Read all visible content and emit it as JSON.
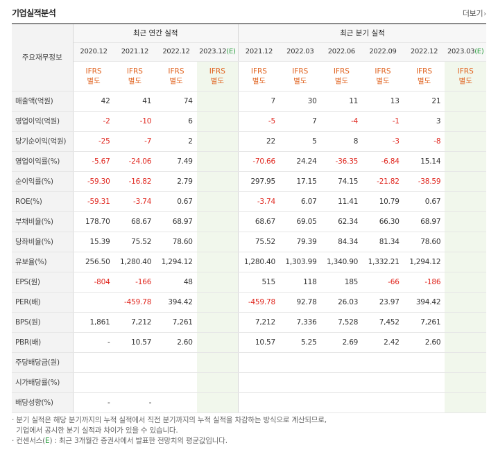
{
  "title": "기업실적분석",
  "more": {
    "label": "더보기",
    "icon": "chevron-right-icon"
  },
  "rowhead_label": "주요재무정보",
  "groups": {
    "annual": "최근 연간 실적",
    "quarterly": "최근 분기 실적"
  },
  "annual": [
    {
      "period": "2020.12",
      "estimate": false,
      "ifrs": [
        "IFRS",
        "별도"
      ]
    },
    {
      "period": "2021.12",
      "estimate": false,
      "ifrs": [
        "IFRS",
        "별도"
      ]
    },
    {
      "period": "2022.12",
      "estimate": false,
      "ifrs": [
        "IFRS",
        "별도"
      ]
    },
    {
      "period": "2023.12",
      "estimate": true,
      "e_mark": "(E)",
      "ifrs": [
        "IFRS",
        "별도"
      ]
    }
  ],
  "quarterly": [
    {
      "period": "2021.12",
      "estimate": false,
      "ifrs": [
        "IFRS",
        "별도"
      ]
    },
    {
      "period": "2022.03",
      "estimate": false,
      "ifrs": [
        "IFRS",
        "별도"
      ]
    },
    {
      "period": "2022.06",
      "estimate": false,
      "ifrs": [
        "IFRS",
        "별도"
      ]
    },
    {
      "period": "2022.09",
      "estimate": false,
      "ifrs": [
        "IFRS",
        "별도"
      ]
    },
    {
      "period": "2022.12",
      "estimate": false,
      "ifrs": [
        "IFRS",
        "별도"
      ]
    },
    {
      "period": "2023.03",
      "estimate": true,
      "e_mark": "(E)",
      "ifrs": [
        "IFRS",
        "별도"
      ]
    }
  ],
  "rows": [
    {
      "label": "매출액(억원)",
      "group_start": false,
      "values": [
        "42",
        "41",
        "74",
        "",
        "7",
        "30",
        "11",
        "13",
        "21",
        ""
      ]
    },
    {
      "label": "영업이익(억원)",
      "group_start": false,
      "values": [
        "-2",
        "-10",
        "6",
        "",
        "-5",
        "7",
        "-4",
        "-1",
        "3",
        ""
      ]
    },
    {
      "label": "당기순이익(억원)",
      "group_start": false,
      "values": [
        "-25",
        "-7",
        "2",
        "",
        "22",
        "5",
        "8",
        "-3",
        "-8",
        ""
      ]
    },
    {
      "label": "영업이익률(%)",
      "group_start": true,
      "values": [
        "-5.67",
        "-24.06",
        "7.49",
        "",
        "-70.66",
        "24.24",
        "-36.35",
        "-6.84",
        "15.14",
        ""
      ]
    },
    {
      "label": "순이익률(%)",
      "group_start": false,
      "values": [
        "-59.30",
        "-16.82",
        "2.79",
        "",
        "297.95",
        "17.15",
        "74.15",
        "-21.82",
        "-38.59",
        ""
      ]
    },
    {
      "label": "ROE(%)",
      "group_start": false,
      "values": [
        "-59.31",
        "-3.74",
        "0.67",
        "",
        "-3.74",
        "6.07",
        "11.41",
        "10.79",
        "0.67",
        ""
      ]
    },
    {
      "label": "부채비율(%)",
      "group_start": true,
      "values": [
        "178.70",
        "68.67",
        "68.97",
        "",
        "68.67",
        "69.05",
        "62.34",
        "66.30",
        "68.97",
        ""
      ]
    },
    {
      "label": "당좌비율(%)",
      "group_start": false,
      "values": [
        "15.39",
        "75.52",
        "78.60",
        "",
        "75.52",
        "79.39",
        "84.34",
        "81.34",
        "78.60",
        ""
      ]
    },
    {
      "label": "유보율(%)",
      "group_start": false,
      "values": [
        "256.50",
        "1,280.40",
        "1,294.12",
        "",
        "1,280.40",
        "1,303.99",
        "1,340.90",
        "1,332.21",
        "1,294.12",
        ""
      ]
    },
    {
      "label": "EPS(원)",
      "group_start": true,
      "values": [
        "-804",
        "-166",
        "48",
        "",
        "515",
        "118",
        "185",
        "-66",
        "-186",
        ""
      ]
    },
    {
      "label": "PER(배)",
      "group_start": false,
      "values": [
        "",
        "-459.78",
        "394.42",
        "",
        "-459.78",
        "92.78",
        "26.03",
        "23.97",
        "394.42",
        ""
      ]
    },
    {
      "label": "BPS(원)",
      "group_start": false,
      "values": [
        "1,861",
        "7,212",
        "7,261",
        "",
        "7,212",
        "7,336",
        "7,528",
        "7,452",
        "7,261",
        ""
      ]
    },
    {
      "label": "PBR(배)",
      "group_start": false,
      "values": [
        "-",
        "10.57",
        "2.60",
        "",
        "10.57",
        "5.25",
        "2.69",
        "2.42",
        "2.60",
        ""
      ]
    },
    {
      "label": "주당배당금(원)",
      "group_start": true,
      "values": [
        "",
        "",
        "",
        "",
        "",
        "",
        "",
        "",
        "",
        ""
      ]
    },
    {
      "label": "시가배당률(%)",
      "group_start": false,
      "values": [
        "",
        "",
        "",
        "",
        "",
        "",
        "",
        "",
        "",
        ""
      ]
    },
    {
      "label": "배당성향(%)",
      "group_start": false,
      "values": [
        "-",
        "-",
        "",
        "",
        "",
        "",
        "",
        "",
        "",
        ""
      ]
    }
  ],
  "notes": {
    "line1": "· 분기 실적은 해당 분기까지의 누적 실적에서 직전 분기까지의 누적 실적을 차감하는 방식으로 계산되므로,",
    "line2": "  기업에서 공시한 분기 실적과 차이가 있을 수 있습니다.",
    "line3_prefix": "· 컨센서스(",
    "line3_e": "E",
    "line3_suffix": ") : 최근 3개월간 증권사에서 발표한 전망치의 평균값입니다."
  },
  "colors": {
    "negative": "#e0261e",
    "ifrs": "#e0621e",
    "estimate_bg": "#f1f7ec",
    "estimate_mark": "#2a9d3e"
  }
}
